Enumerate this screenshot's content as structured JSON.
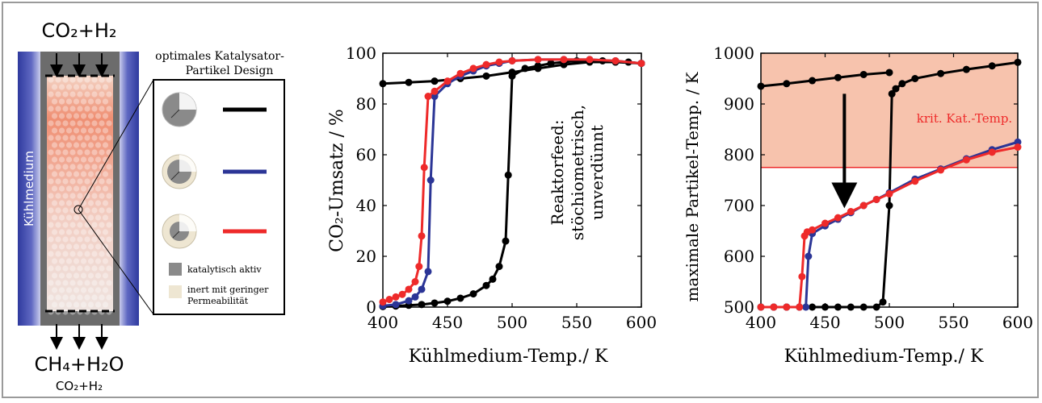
{
  "reactor": {
    "inlet_label": "CO₂+H₂",
    "outlet_label": "CH₄+H₂O",
    "outlet_sub_label": "CO₂+H₂",
    "coolant_label": "Kühlmedium"
  },
  "legend": {
    "title_line1": "optimales Katalysator-",
    "title_line2": "Partikel Design",
    "designs": [
      {
        "line_color": "#000000"
      },
      {
        "line_color": "#2b3596"
      },
      {
        "line_color": "#ee2a2a"
      }
    ],
    "active_label": "katalytisch aktiv",
    "inert_label_line1": "inert mit geringer",
    "inert_label_line2": "Permeabilität",
    "active_color": "#8a8a8a",
    "inert_color": "#eee6d2"
  },
  "colors": {
    "black": "#000000",
    "blue": "#2b3596",
    "red": "#ee2a2a",
    "critical_zone": "#f7c3ad",
    "coolant": "#3b44a8"
  },
  "chart_data": [
    {
      "type": "line",
      "xlabel": "Kühlmedium-Temp./ K",
      "ylabel": "CO₂-Umsatz / %",
      "xlim": [
        400,
        600
      ],
      "ylim": [
        0,
        100
      ],
      "xticks": [
        400,
        450,
        500,
        550,
        600
      ],
      "yticks": [
        0,
        20,
        40,
        60,
        80,
        100
      ],
      "annotation": [
        "Reaktorfeed:",
        "stöchiometrisch,",
        "unverdünnt"
      ],
      "series": [
        {
          "color": "black",
          "branches": [
            {
              "x": [
                400,
                410,
                420,
                430,
                440,
                450,
                460,
                470,
                480,
                485,
                490,
                495,
                497,
                500,
                510,
                520,
                530,
                540,
                550,
                560,
                570,
                580,
                590,
                600
              ],
              "y": [
                0.2,
                0.4,
                0.7,
                1.0,
                1.6,
                2.3,
                3.5,
                5.2,
                8.5,
                11,
                16,
                26,
                52,
                91,
                94,
                95,
                96,
                96.5,
                97,
                97,
                97,
                96.8,
                96.5,
                96
              ]
            },
            {
              "x": [
                400,
                420,
                440,
                460,
                480,
                500,
                520,
                540,
                560,
                580,
                600
              ],
              "y": [
                88,
                88.5,
                89,
                90,
                91,
                92.5,
                94,
                95.5,
                96.5,
                96.5,
                96
              ]
            }
          ]
        },
        {
          "color": "blue",
          "branches": [
            {
              "x": [
                400,
                410,
                420,
                425,
                430,
                435,
                437,
                440,
                450,
                460,
                470,
                480,
                490,
                500,
                520,
                540,
                560,
                580,
                600
              ],
              "y": [
                0.5,
                1.0,
                2.5,
                4,
                7,
                14,
                50,
                83,
                88,
                91,
                93,
                95,
                96,
                97,
                97.5,
                97.5,
                97.5,
                97,
                96
              ]
            }
          ]
        },
        {
          "color": "red",
          "branches": [
            {
              "x": [
                400,
                405,
                410,
                415,
                420,
                425,
                428,
                430,
                432,
                435,
                440,
                450,
                460,
                470,
                480,
                490,
                500,
                520,
                540,
                560,
                580,
                600
              ],
              "y": [
                2,
                3,
                4,
                5,
                7,
                10,
                16,
                28,
                55,
                83,
                85,
                89,
                92,
                94,
                95.5,
                96.5,
                97,
                97.5,
                97.5,
                97.5,
                97,
                96
              ]
            }
          ]
        }
      ]
    },
    {
      "type": "line",
      "xlabel": "Kühlmedium-Temp./ K",
      "ylabel": "maximale Partikel-Temp. / K",
      "xlim": [
        400,
        600
      ],
      "ylim": [
        500,
        1000
      ],
      "xticks": [
        400,
        450,
        500,
        550,
        600
      ],
      "yticks": [
        500,
        600,
        700,
        800,
        900,
        1000
      ],
      "critical_label": "krit. Kat.-Temp.",
      "critical_temp": 775,
      "arrow_x": 465,
      "arrow_from": 920,
      "arrow_to": 720,
      "series": [
        {
          "color": "black",
          "branches": [
            {
              "x": [
                400,
                410,
                420,
                430,
                440,
                450,
                460,
                470,
                480,
                490,
                495,
                500,
                502,
                505,
                510,
                520,
                540,
                560,
                580,
                600
              ],
              "y": [
                500,
                500,
                500,
                500,
                500,
                500,
                500,
                500,
                500,
                500,
                510,
                700,
                920,
                930,
                940,
                950,
                960,
                968,
                975,
                982
              ]
            },
            {
              "x": [
                400,
                420,
                440,
                460,
                480,
                500
              ],
              "y": [
                935,
                940,
                946,
                952,
                958,
                962
              ]
            }
          ]
        },
        {
          "color": "blue",
          "branches": [
            {
              "x": [
                400,
                410,
                420,
                430,
                435,
                437,
                440,
                450,
                460,
                470,
                480,
                490,
                500,
                520,
                540,
                560,
                580,
                600
              ],
              "y": [
                500,
                500,
                500,
                500,
                500,
                600,
                645,
                660,
                673,
                686,
                700,
                712,
                725,
                752,
                772,
                792,
                810,
                825
              ]
            }
          ]
        },
        {
          "color": "red",
          "branches": [
            {
              "x": [
                400,
                410,
                420,
                430,
                432,
                434,
                436,
                440,
                450,
                460,
                470,
                480,
                490,
                500,
                520,
                540,
                560,
                580,
                600
              ],
              "y": [
                500,
                500,
                500,
                500,
                560,
                640,
                648,
                652,
                665,
                676,
                688,
                700,
                712,
                723,
                748,
                770,
                790,
                805,
                815
              ]
            }
          ]
        }
      ]
    }
  ]
}
